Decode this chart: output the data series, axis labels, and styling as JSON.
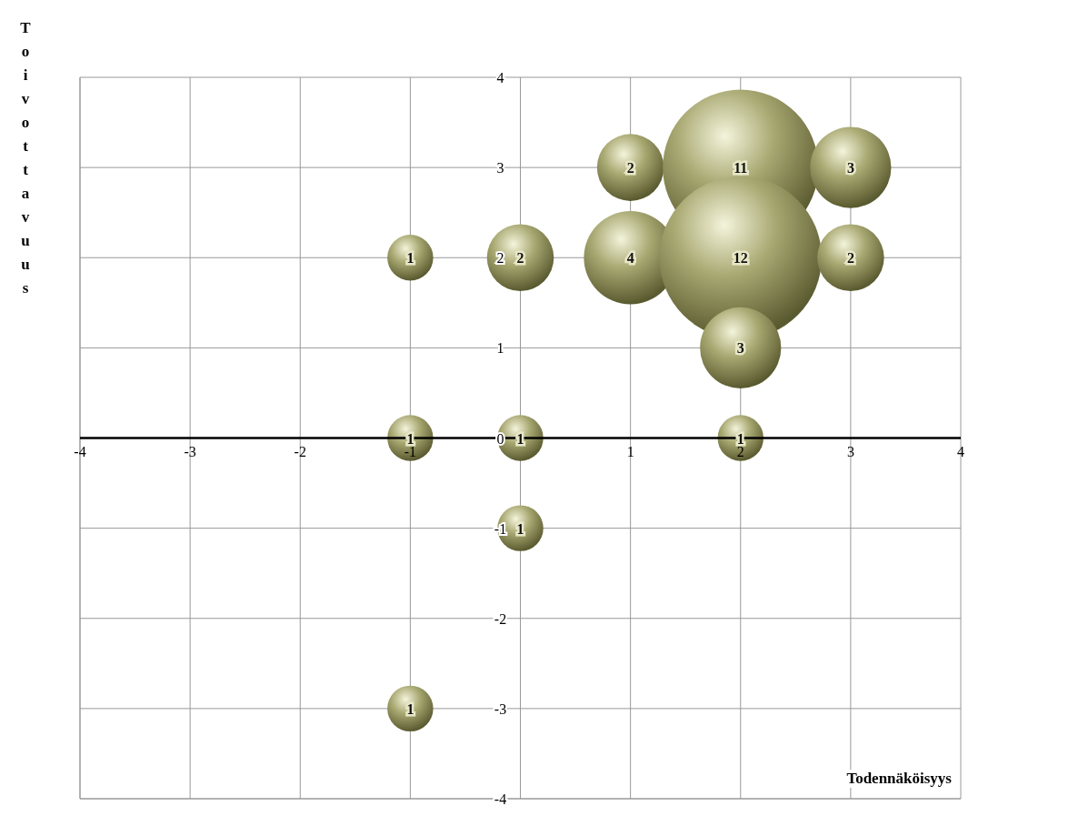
{
  "chart_data": {
    "type": "bubble",
    "xlabel": "Todennäköisyys",
    "ylabel": "Toivottavuus",
    "x": [
      -1,
      0,
      1,
      2,
      3,
      1,
      2,
      3,
      2,
      -1,
      0,
      2,
      0,
      -1
    ],
    "values": [
      2,
      2,
      3,
      3,
      3,
      2,
      2,
      2,
      1,
      0,
      0,
      0,
      -1,
      -3
    ],
    "sizes": [
      0.08,
      0.17,
      0.17,
      0.92,
      0.25,
      0.33,
      1,
      0.17,
      0.25,
      0.08,
      0.08,
      0.08,
      0.08,
      0.08
    ],
    "annotations": [
      {
        "text": "1",
        "x": -1,
        "y": 2
      },
      {
        "text": "2",
        "x": 0,
        "y": 2
      },
      {
        "text": "2",
        "x": 1,
        "y": 3
      },
      {
        "text": "11",
        "x": 2,
        "y": 3
      },
      {
        "text": "3",
        "x": 3,
        "y": 3
      },
      {
        "text": "4",
        "x": 1,
        "y": 2
      },
      {
        "text": "12",
        "x": 2,
        "y": 2
      },
      {
        "text": "2",
        "x": 3,
        "y": 2
      },
      {
        "text": "3",
        "x": 2,
        "y": 1
      },
      {
        "text": "1",
        "x": -1,
        "y": 0
      },
      {
        "text": "1",
        "x": 0,
        "y": 0
      },
      {
        "text": "1",
        "x": 2,
        "y": 0
      },
      {
        "text": "1",
        "x": 0,
        "y": -1
      },
      {
        "text": "1",
        "x": -1,
        "y": -3
      }
    ],
    "color": "#a8a872",
    "xlim": [
      -4,
      4
    ],
    "xticks": [
      -4,
      -3,
      -2,
      -1,
      {
        "value": 0,
        "label": null
      },
      1,
      2,
      3,
      4
    ],
    "ylim": [
      -4,
      4
    ],
    "yticks": [
      -4,
      -3,
      -2,
      -1,
      0,
      1,
      2,
      3,
      4
    ],
    "grid": true
  }
}
